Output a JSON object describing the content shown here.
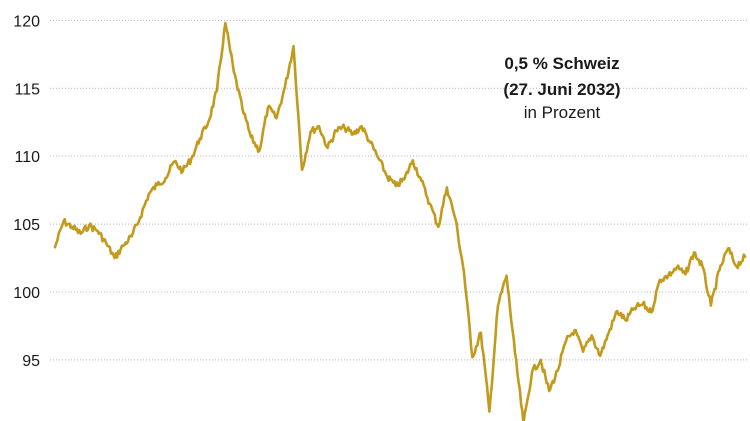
{
  "chart_data": {
    "type": "line",
    "title": "0,5 % Schweiz",
    "subtitle": "(27. Juni 2032)",
    "unit_label": "in Prozent",
    "xlabel": "",
    "ylabel": "",
    "ylim": [
      90.5,
      121.5
    ],
    "y_ticks": [
      95,
      100,
      105,
      110,
      115,
      120
    ],
    "y_tick_labels": [
      "95",
      "100",
      "105",
      "110",
      "115",
      "120"
    ],
    "grid": true,
    "line_color": "#c29a1c",
    "series": [
      {
        "values": [
          103.3,
          105.2,
          104.8,
          104.3,
          104.9,
          104.5,
          103.6,
          102.5,
          103.4,
          104.1,
          105.5,
          107.2,
          107.9,
          108.4,
          109.6,
          108.9,
          109.8,
          111.3,
          112.5,
          114.8,
          119.8,
          116.2,
          113.5,
          111.4,
          110.4,
          113.6,
          112.8,
          115.1,
          118.1,
          109.0,
          111.8,
          112.2,
          110.6,
          111.9,
          112.1,
          111.6,
          112.2,
          111.0,
          109.8,
          108.5,
          107.8,
          108.3,
          109.7,
          108.2,
          106.5,
          104.8,
          107.7,
          105.4,
          101.5,
          95.2,
          97.0,
          91.2,
          99.0,
          101.2,
          95.5,
          90.3,
          94.1,
          95.0,
          92.7,
          94.2,
          96.4,
          97.2,
          95.6,
          96.8,
          95.3,
          97.0,
          98.6,
          97.9,
          98.8,
          99.1,
          98.5,
          100.9,
          101.2,
          101.8,
          101.3,
          102.9,
          101.9,
          99.0,
          101.6,
          103.2,
          101.9,
          102.6
        ]
      }
    ]
  }
}
